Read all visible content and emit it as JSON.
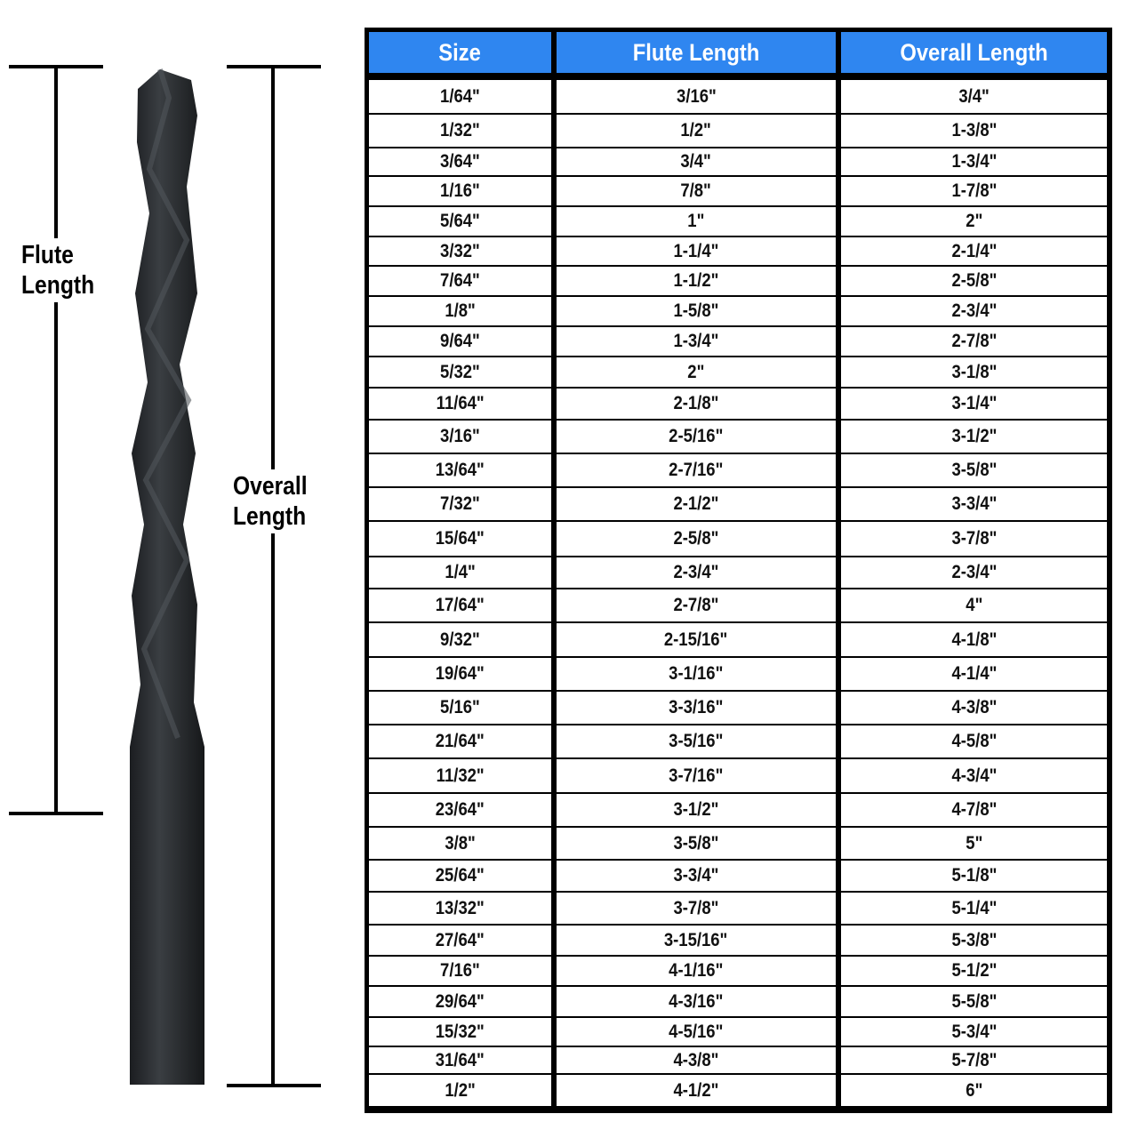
{
  "labels": {
    "flute_length": [
      "Flute",
      "Length"
    ],
    "overall_length": [
      "Overall",
      "Length"
    ]
  },
  "colors": {
    "header_bg": "#2f86f0",
    "header_text": "#ffffff",
    "drill_body": "#25282b"
  },
  "table": {
    "headers": [
      "Size",
      "Flute Length",
      "Overall Length"
    ],
    "rows": [
      [
        "1/64\"",
        "3/16\"",
        "3/4\""
      ],
      [
        "1/32\"",
        "1/2\"",
        "1-3/8\""
      ],
      [
        "3/64\"",
        "3/4\"",
        "1-3/4\""
      ],
      [
        "1/16\"",
        "7/8\"",
        "1-7/8\""
      ],
      [
        "5/64\"",
        "1\"",
        "2\""
      ],
      [
        "3/32\"",
        "1-1/4\"",
        "2-1/4\""
      ],
      [
        "7/64\"",
        "1-1/2\"",
        "2-5/8\""
      ],
      [
        "1/8\"",
        "1-5/8\"",
        "2-3/4\""
      ],
      [
        "9/64\"",
        "1-3/4\"",
        "2-7/8\""
      ],
      [
        "5/32\"",
        "2\"",
        "3-1/8\""
      ],
      [
        "11/64\"",
        "2-1/8\"",
        "3-1/4\""
      ],
      [
        "3/16\"",
        "2-5/16\"",
        "3-1/2\""
      ],
      [
        "13/64\"",
        "2-7/16\"",
        "3-5/8\""
      ],
      [
        "7/32\"",
        "2-1/2\"",
        "3-3/4\""
      ],
      [
        "15/64\"",
        "2-5/8\"",
        "3-7/8\""
      ],
      [
        "1/4\"",
        "2-3/4\"",
        "2-3/4\""
      ],
      [
        "17/64\"",
        "2-7/8\"",
        "4\""
      ],
      [
        "9/32\"",
        "2-15/16\"",
        "4-1/8\""
      ],
      [
        "19/64\"",
        "3-1/16\"",
        "4-1/4\""
      ],
      [
        "5/16\"",
        "3-3/16\"",
        "4-3/8\""
      ],
      [
        "21/64\"",
        "3-5/16\"",
        "4-5/8\""
      ],
      [
        "11/32\"",
        "3-7/16\"",
        "4-3/4\""
      ],
      [
        "23/64\"",
        "3-1/2\"",
        "4-7/8\""
      ],
      [
        "3/8\"",
        "3-5/8\"",
        "5\""
      ],
      [
        "25/64\"",
        "3-3/4\"",
        "5-1/8\""
      ],
      [
        "13/32\"",
        "3-7/8\"",
        "5-1/4\""
      ],
      [
        "27/64\"",
        "3-15/16\"",
        "5-3/8\""
      ],
      [
        "7/16\"",
        "4-1/16\"",
        "5-1/2\""
      ],
      [
        "29/64\"",
        "4-3/16\"",
        "5-5/8\""
      ],
      [
        "15/32\"",
        "4-5/16\"",
        "5-3/4\""
      ],
      [
        "31/64\"",
        "4-3/8\"",
        "5-7/8\""
      ],
      [
        "1/2\"",
        "4-1/2\"",
        "6\""
      ]
    ]
  }
}
